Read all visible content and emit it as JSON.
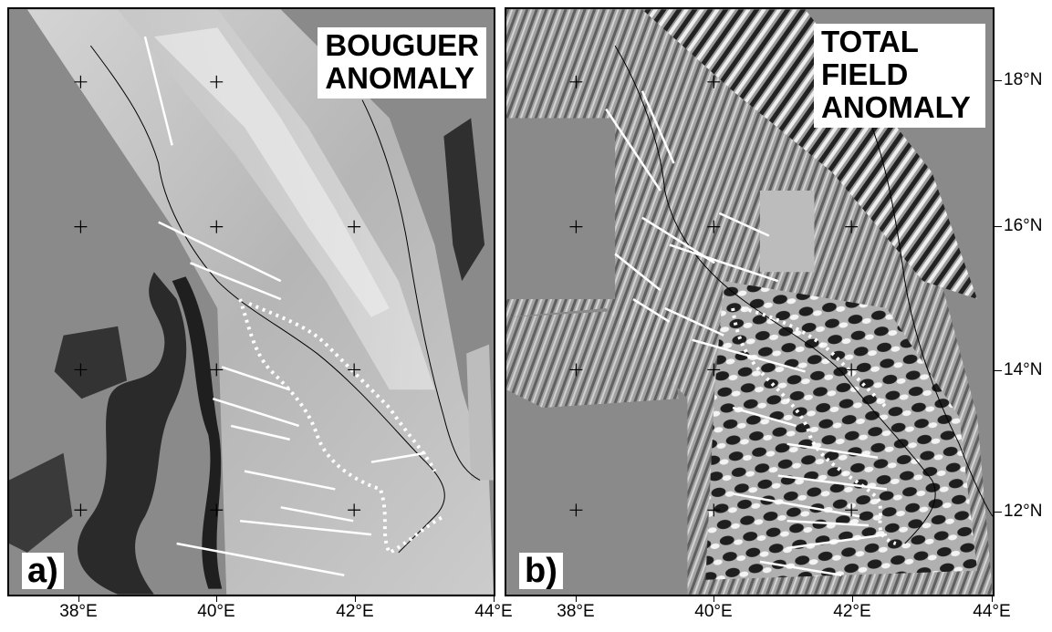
{
  "panels": [
    {
      "id": "a",
      "letter": "a)",
      "title_lines": [
        "BOUGUER",
        "ANOMALY"
      ]
    },
    {
      "id": "b",
      "letter": "b)",
      "title_lines": [
        "TOTAL",
        "FIELD",
        "ANOMALY"
      ]
    }
  ],
  "axes": {
    "x_tick_labels": [
      "38°E",
      "40°E",
      "42°E",
      "44°E"
    ],
    "y_tick_labels": [
      "18°N",
      "16°N",
      "14°N",
      "12°N"
    ]
  },
  "colors": {
    "background_gray": "#8a8a8a",
    "frame": "#000000",
    "label_box": "#ffffff",
    "dotted_boundary": "#ffffff"
  },
  "icons": [
    "grid-cross-icon",
    "coastline-line",
    "white-profile-line",
    "dotted-boundary-line"
  ]
}
